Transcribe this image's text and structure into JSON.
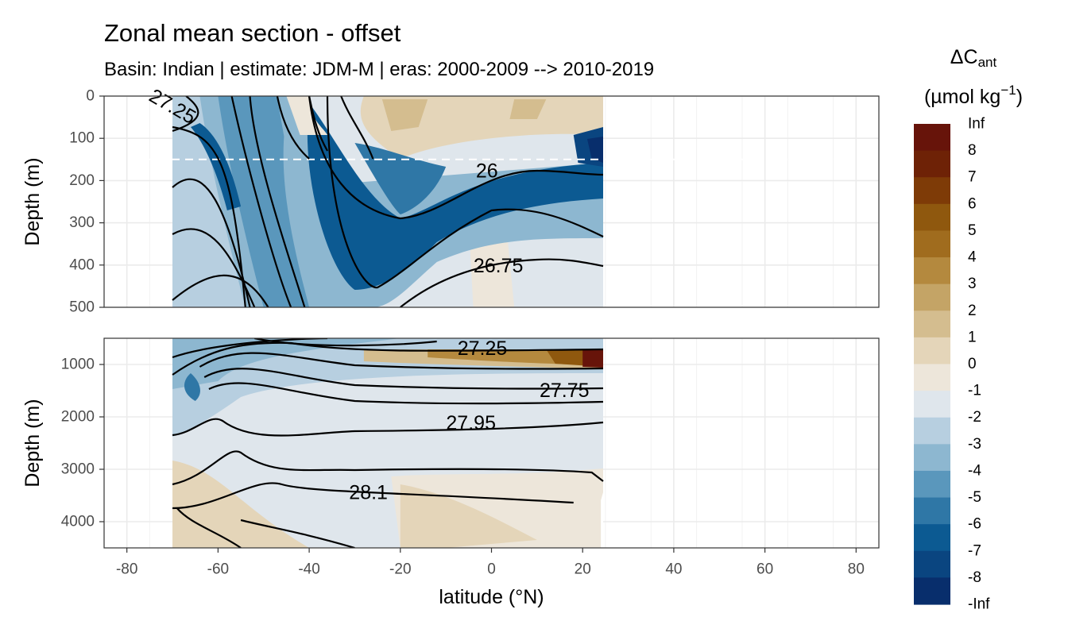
{
  "chart_data": {
    "type": "heatmap",
    "title": "Zonal mean section - offset",
    "subtitle": "Basin: Indian | estimate: JDM-M | eras: 2000-2009 --> 2010-2019",
    "xlabel": "latitude (°N)",
    "ylabel": "Depth (m)",
    "xlim": [
      -85,
      85
    ],
    "x_ticks": [
      -80,
      -60,
      -40,
      -20,
      0,
      20,
      40,
      60,
      80
    ],
    "data_lat_range": [
      -70,
      24.5
    ],
    "panels": [
      {
        "name": "upper",
        "ylim": [
          0,
          500
        ],
        "y_ticks": [
          0,
          100,
          200,
          300,
          400,
          500
        ]
      },
      {
        "name": "lower",
        "ylim": [
          500,
          4500
        ],
        "y_ticks": [
          1000,
          2000,
          3000,
          4000
        ]
      }
    ],
    "reference_depth_line": 150,
    "legend": {
      "title": "ΔC",
      "title_subscript": "ant",
      "units": "(µmol kg",
      "units_superscript": "−1",
      "units_close": ")",
      "position": "right",
      "bins": [
        {
          "label": "Inf",
          "color": "#67140a"
        },
        {
          "label": "8",
          "color": "#6e2206"
        },
        {
          "label": "7",
          "color": "#7e3b07"
        },
        {
          "label": "6",
          "color": "#8f580e"
        },
        {
          "label": "5",
          "color": "#a06c1e"
        },
        {
          "label": "4",
          "color": "#b4893e"
        },
        {
          "label": "3",
          "color": "#c4a466"
        },
        {
          "label": "2",
          "color": "#d4bd8f"
        },
        {
          "label": "1",
          "color": "#e4d5b9"
        },
        {
          "label": "0",
          "color": "#ede6da"
        },
        {
          "label": "-1",
          "color": "#dfe6ec"
        },
        {
          "label": "-2",
          "color": "#b7cfe0"
        },
        {
          "label": "-3",
          "color": "#8db7d0"
        },
        {
          "label": "-4",
          "color": "#5a97bc"
        },
        {
          "label": "-5",
          "color": "#2f77a6"
        },
        {
          "label": "-6",
          "color": "#0c5a92"
        },
        {
          "label": "-7",
          "color": "#0a4580"
        },
        {
          "label": "-8",
          "color": "#082e6c"
        },
        {
          "label": "-Inf",
          "color": "#061a5a"
        }
      ]
    },
    "contour_labels": [
      {
        "text": "27.25",
        "panel": "upper",
        "lat": -70,
        "depth": 25,
        "rotate": 30
      },
      {
        "text": "26",
        "panel": "upper",
        "lat": -1,
        "depth": 178
      },
      {
        "text": "26.75",
        "panel": "upper",
        "lat": 1.5,
        "depth": 402
      },
      {
        "text": "27.25",
        "panel": "lower",
        "lat": -2,
        "depth": 700
      },
      {
        "text": "27.75",
        "panel": "lower",
        "lat": 16,
        "depth": 1500
      },
      {
        "text": "27.95",
        "panel": "lower",
        "lat": -4.5,
        "depth": 2120
      },
      {
        "text": "28.1",
        "panel": "lower",
        "lat": -27,
        "depth": 3450
      }
    ]
  }
}
